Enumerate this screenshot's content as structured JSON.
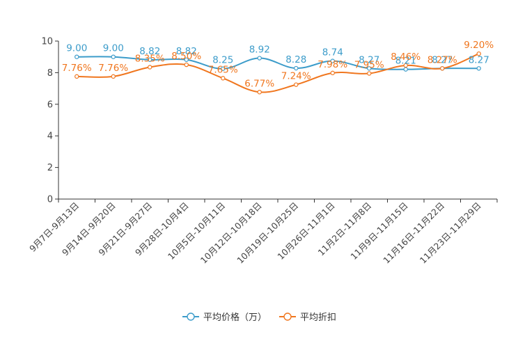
{
  "chart_data": {
    "type": "line",
    "categories": [
      "9月7日-9月13日",
      "9月14日-9月20日",
      "9月21日-9月27日",
      "9月28日-10月4日",
      "10月5日-10月11日",
      "10月12日-10月18日",
      "10月19日-10月25日",
      "10月26日-11月1日",
      "11月2日-11月8日",
      "11月9日-11月15日",
      "11月16日-11月22日",
      "11月23日-11月29日"
    ],
    "ylim": [
      0,
      10
    ],
    "yticks": [
      0,
      2,
      4,
      6,
      8,
      10
    ],
    "series": [
      {
        "name": "平均价格（万）",
        "color": "#3c9cca",
        "values": [
          9.0,
          9.0,
          8.82,
          8.82,
          8.25,
          8.92,
          8.28,
          8.74,
          8.27,
          8.21,
          8.27,
          8.27
        ],
        "labels": [
          "9.00",
          "9.00",
          "8.82",
          "8.82",
          "8.25",
          "8.92",
          "8.28",
          "8.74",
          "8.27",
          "8.21",
          "8.27",
          "8.27"
        ]
      },
      {
        "name": "平均折扣",
        "color": "#f0761e",
        "values": [
          7.76,
          7.76,
          8.35,
          8.5,
          7.65,
          6.77,
          7.24,
          7.98,
          7.95,
          8.46,
          8.27,
          9.2
        ],
        "labels": [
          "7.76%",
          "7.76%",
          "8.35%",
          "8.50%",
          "7.65%",
          "6.77%",
          "7.24%",
          "7.98%",
          "7.95%",
          "8.46%",
          "8.27%",
          "9.20%"
        ]
      }
    ]
  }
}
